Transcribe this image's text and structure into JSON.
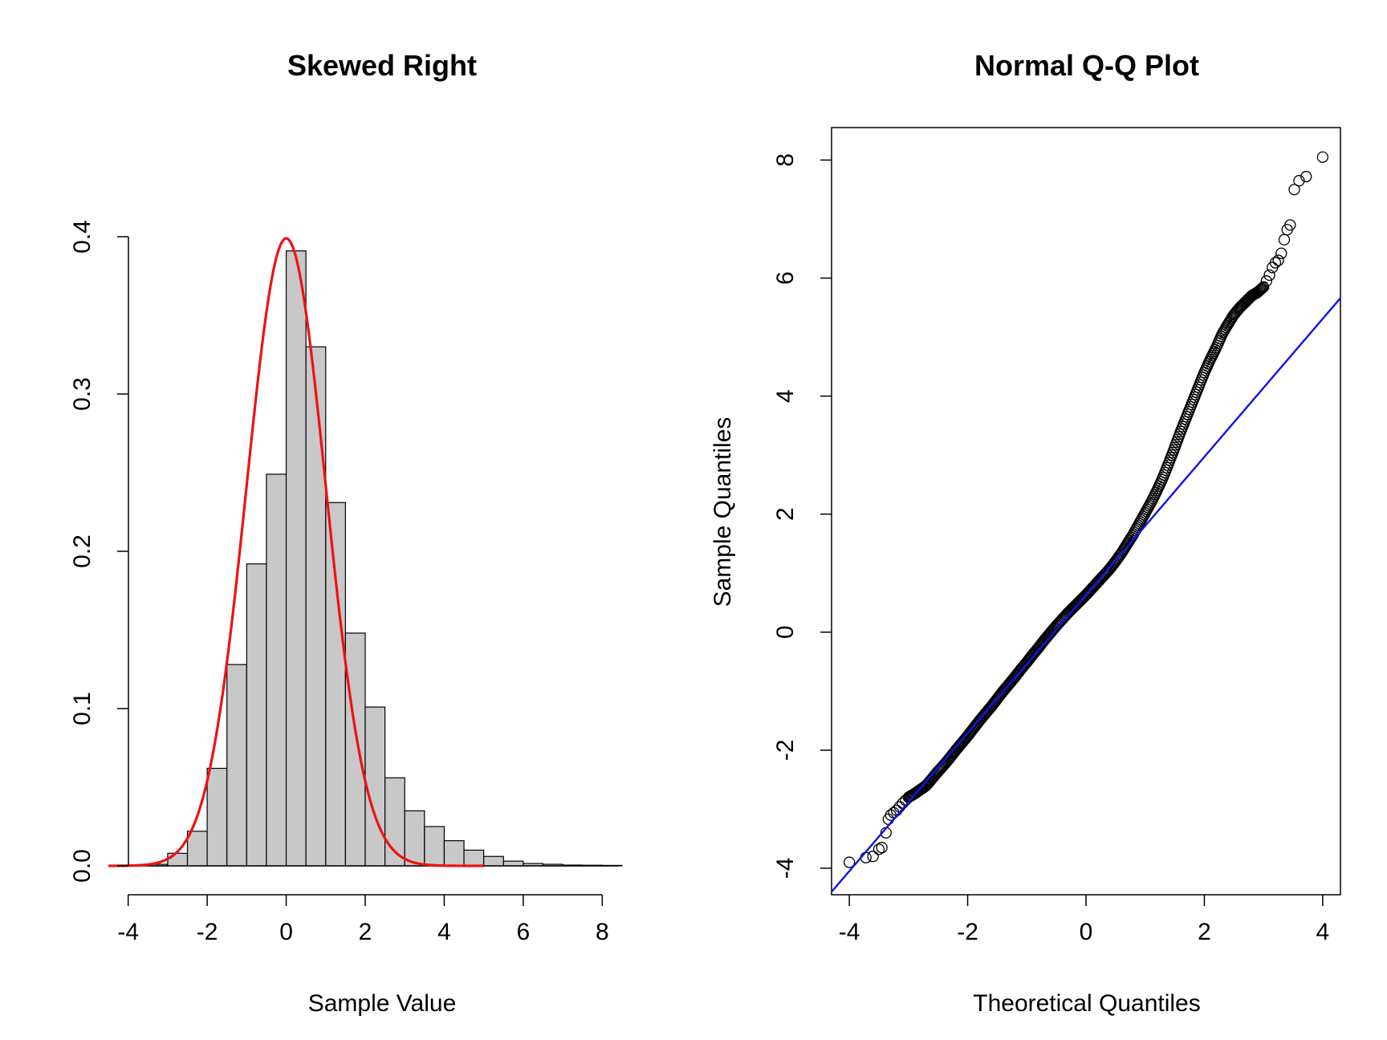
{
  "chart_data": [
    {
      "type": "bar",
      "title": "Skewed Right",
      "xlabel": "Sample Value",
      "ylabel": "",
      "xlim": [
        -4.4,
        8.4
      ],
      "ylim": [
        0,
        0.4
      ],
      "xticks": [
        "-4",
        "-2",
        "0",
        "2",
        "4",
        "6",
        "8"
      ],
      "yticks": [
        "0.0",
        "0.1",
        "0.2",
        "0.3",
        "0.4"
      ],
      "bin_width": 0.5,
      "bin_starts": [
        -3.5,
        -3.0,
        -2.5,
        -2.0,
        -1.5,
        -1.0,
        -0.5,
        0.0,
        0.5,
        1.0,
        1.5,
        2.0,
        2.5,
        3.0,
        3.5,
        4.0,
        4.5,
        5.0,
        5.5,
        6.0,
        6.5,
        7.0,
        7.5,
        8.0
      ],
      "values": [
        0.001,
        0.008,
        0.022,
        0.062,
        0.128,
        0.192,
        0.249,
        0.391,
        0.33,
        0.231,
        0.148,
        0.101,
        0.056,
        0.035,
        0.025,
        0.016,
        0.01,
        0.006,
        0.003,
        0.0015,
        0.001,
        0.0005,
        0.0004,
        0.0003
      ],
      "overlay": {
        "type": "normal-density",
        "mean": 0,
        "sd": 1,
        "x_range": [
          -4.5,
          5.0
        ],
        "color": "#ee1111"
      },
      "bar_color": "#c8c8c8"
    },
    {
      "type": "scatter",
      "title": "Normal Q-Q Plot",
      "xlabel": "Theoretical Quantiles",
      "ylabel": "Sample Quantiles",
      "xlim": [
        -4.3,
        4.3
      ],
      "ylim": [
        -4.45,
        8.55
      ],
      "xticks": [
        "-4",
        "-2",
        "0",
        "2",
        "4"
      ],
      "yticks": [
        "-4",
        "-2",
        "0",
        "2",
        "4",
        "6",
        "8"
      ],
      "points": {
        "x": [
          -4.0,
          -3.72,
          -3.6,
          -3.5,
          -3.45,
          -3.38,
          -3.34,
          -3.3,
          -3.25,
          -3.2,
          -3.15,
          -3.1,
          -3.05,
          -3.0,
          -2.9,
          -2.8,
          -2.7,
          -2.6,
          -2.5,
          -2.4,
          -2.3,
          -2.2,
          -2.1,
          -2.0,
          -1.9,
          -1.8,
          -1.7,
          -1.6,
          -1.5,
          -1.4,
          -1.3,
          -1.2,
          -1.1,
          -1.0,
          -0.9,
          -0.8,
          -0.7,
          -0.6,
          -0.5,
          -0.4,
          -0.3,
          -0.2,
          -0.1,
          0.0,
          0.1,
          0.2,
          0.3,
          0.4,
          0.5,
          0.6,
          0.7,
          0.8,
          0.9,
          1.0,
          1.1,
          1.2,
          1.3,
          1.4,
          1.5,
          1.6,
          1.7,
          1.8,
          1.9,
          2.0,
          2.1,
          2.2,
          2.3,
          2.4,
          2.5,
          2.6,
          2.7,
          2.8,
          2.9,
          3.0,
          3.05,
          3.1,
          3.15,
          3.2,
          3.25,
          3.3,
          3.35,
          3.4,
          3.45,
          3.52,
          3.6,
          3.72,
          4.0
        ],
        "y": [
          -3.9,
          -3.82,
          -3.8,
          -3.68,
          -3.65,
          -3.4,
          -3.17,
          -3.1,
          -3.06,
          -3.02,
          -2.96,
          -2.9,
          -2.85,
          -2.8,
          -2.74,
          -2.67,
          -2.6,
          -2.48,
          -2.36,
          -2.25,
          -2.13,
          -2.0,
          -1.88,
          -1.76,
          -1.63,
          -1.5,
          -1.38,
          -1.26,
          -1.13,
          -1.0,
          -0.88,
          -0.76,
          -0.63,
          -0.51,
          -0.38,
          -0.26,
          -0.13,
          -0.01,
          0.11,
          0.22,
          0.33,
          0.43,
          0.53,
          0.63,
          0.74,
          0.85,
          0.96,
          1.07,
          1.2,
          1.34,
          1.5,
          1.66,
          1.84,
          2.02,
          2.2,
          2.4,
          2.62,
          2.87,
          3.13,
          3.4,
          3.65,
          3.9,
          4.15,
          4.4,
          4.62,
          4.82,
          5.05,
          5.22,
          5.38,
          5.5,
          5.6,
          5.7,
          5.76,
          5.85,
          5.95,
          6.05,
          6.18,
          6.26,
          6.3,
          6.42,
          6.65,
          6.82,
          6.9,
          7.5,
          7.65,
          7.72,
          8.05
        ]
      },
      "reference_line": {
        "intercept": 0.63,
        "slope": 1.17,
        "color": "#1111ee"
      },
      "frame": true
    }
  ]
}
